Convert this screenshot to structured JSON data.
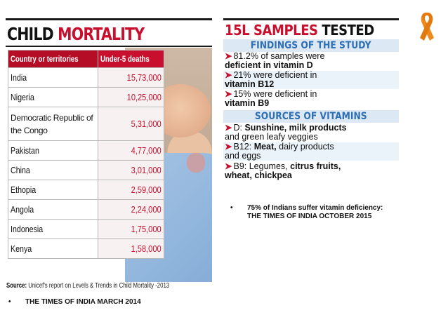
{
  "child_mortality": {
    "title_part1": "CHILD",
    "title_part2": "MORTALITY",
    "table": {
      "headers": [
        "Country or territories",
        "Under-5 deaths"
      ],
      "rows": [
        {
          "country": "India",
          "deaths": "15,73,000"
        },
        {
          "country": "Nigeria",
          "deaths": "10,25,000"
        },
        {
          "country": "Democratic Republic of the Congo",
          "deaths": "5,31,000"
        },
        {
          "country": "Pakistan",
          "deaths": "4,77,000"
        },
        {
          "country": "China",
          "deaths": "3,01,000"
        },
        {
          "country": "Ethopia",
          "deaths": "2,59,000"
        },
        {
          "country": "Angola",
          "deaths": "2,24,000"
        },
        {
          "country": "Indonesia",
          "deaths": "1,75,000"
        },
        {
          "country": "Kenya",
          "deaths": "1,58,000"
        }
      ]
    },
    "source_label": "Source:",
    "source_text": "Unicef's report on Levels & Trends in Child Mortality -2013"
  },
  "samples": {
    "title_part1": "15L SAMPLES",
    "title_part2": "TESTED",
    "findings_heading": "FINDINGS OF THE STUDY",
    "findings": [
      {
        "line1": "81.2% of samples were",
        "line2": "deficient in vitamin D"
      },
      {
        "line1": "21% were deficient in",
        "line2": "vitamin B12"
      },
      {
        "line1": "15% were deficient in",
        "line2": "vitamin B9"
      }
    ],
    "sources_heading": "SOURCES OF VITAMINS",
    "sources": [
      {
        "label": "D:",
        "bold": "Sunshine, milk products",
        "line2": "and green leafy veggies"
      },
      {
        "label": "B12:",
        "bold": "Meat,",
        "rest": "dairy products",
        "line2": "and eggs"
      },
      {
        "label": "B9:",
        "rest": "Legumes,",
        "bold": "citrus fruits,",
        "line2": "wheat, chickpea"
      }
    ]
  },
  "captions": {
    "bullet": "•",
    "right": "75% of Indians suffer vitamin deficiency: THE TIMES OF INDIA OCTOBER 2015",
    "left": "THE TIMES OF INDIA MARCH 2014"
  },
  "colors": {
    "accent_red": "#c8102e",
    "section_blue": "#2f6fb3",
    "ribbon_orange": "#f08a1c"
  },
  "icons": {
    "ribbon": "awareness-ribbon-icon"
  }
}
